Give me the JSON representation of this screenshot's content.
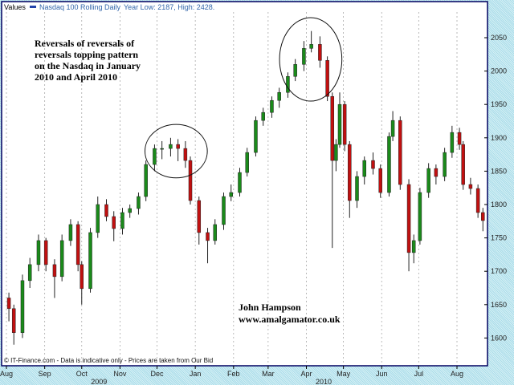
{
  "chart_data": {
    "type": "candlestick",
    "header": {
      "label": "Values",
      "series_name": "Nasdaq 100 Rolling Daily",
      "range_text": "Year Low: 2187, High: 2428."
    },
    "footer_note": "© IT-Finance.com - Data is indicative only - Prices are taken from Our Bid",
    "annotation_main": [
      "Reversals of reversals of",
      "reversals topping pattern",
      "on the Nasdaq in January",
      "2010 and April 2010"
    ],
    "annotation_author": [
      "John Hampson",
      "www.amalgamator.co.uk"
    ],
    "highlight_regions": [
      {
        "from": "2009-12-01",
        "to": "2010-01-01",
        "low": 1840,
        "high": 1920
      },
      {
        "from": "2010-03-20",
        "to": "2010-04-20",
        "low": 1955,
        "high": 2080
      }
    ],
    "x_ticks": [
      {
        "label": "Aug",
        "date": "2009-08-01"
      },
      {
        "label": "Sep",
        "date": "2009-09-01"
      },
      {
        "label": "Oct",
        "date": "2009-10-01"
      },
      {
        "label": "Nov",
        "date": "2009-11-01"
      },
      {
        "label": "Dec",
        "date": "2009-12-01"
      },
      {
        "label": "Jan",
        "date": "2010-01-01"
      },
      {
        "label": "Feb",
        "date": "2010-02-01"
      },
      {
        "label": "Mar",
        "date": "2010-03-01"
      },
      {
        "label": "Apr",
        "date": "2010-04-01"
      },
      {
        "label": "May",
        "date": "2010-05-01"
      },
      {
        "label": "Jun",
        "date": "2010-06-01"
      },
      {
        "label": "Jul",
        "date": "2010-07-01"
      },
      {
        "label": "Aug",
        "date": "2010-08-01"
      }
    ],
    "year_labels": [
      {
        "label": "2009",
        "date": "2009-10-15"
      },
      {
        "label": "2010",
        "date": "2010-04-15"
      }
    ],
    "y_ticks": [
      1600,
      1650,
      1700,
      1750,
      1800,
      1850,
      1900,
      1950,
      2000,
      2050
    ],
    "ylim": [
      1580,
      2095
    ],
    "xlim": [
      "2009-08-01",
      "2010-08-26"
    ],
    "grid": "vertical dashed at months",
    "colors": {
      "up": "#1a8a1a",
      "down": "#c01010",
      "background": "#ffffff",
      "header_text": "#3366aa"
    },
    "candles": [
      [
        "2009-08-03",
        1660,
        1668,
        1625,
        1644
      ],
      [
        "2009-08-07",
        1644,
        1650,
        1590,
        1608
      ],
      [
        "2009-08-14",
        1608,
        1695,
        1600,
        1686
      ],
      [
        "2009-08-20",
        1686,
        1720,
        1675,
        1710
      ],
      [
        "2009-08-27",
        1710,
        1755,
        1700,
        1746
      ],
      [
        "2009-09-02",
        1746,
        1750,
        1700,
        1710
      ],
      [
        "2009-09-09",
        1710,
        1718,
        1660,
        1692
      ],
      [
        "2009-09-15",
        1692,
        1755,
        1685,
        1746
      ],
      [
        "2009-09-22",
        1746,
        1778,
        1738,
        1770
      ],
      [
        "2009-09-28",
        1770,
        1775,
        1700,
        1710
      ],
      [
        "2009-10-01",
        1710,
        1715,
        1650,
        1674
      ],
      [
        "2009-10-08",
        1674,
        1765,
        1668,
        1758
      ],
      [
        "2009-10-14",
        1758,
        1812,
        1750,
        1800
      ],
      [
        "2009-10-21",
        1800,
        1808,
        1775,
        1782
      ],
      [
        "2009-10-27",
        1782,
        1790,
        1745,
        1764
      ],
      [
        "2009-11-03",
        1764,
        1795,
        1755,
        1788
      ],
      [
        "2009-11-09",
        1788,
        1800,
        1780,
        1794
      ],
      [
        "2009-11-16",
        1794,
        1818,
        1785,
        1812
      ],
      [
        "2009-11-22",
        1812,
        1866,
        1805,
        1860
      ],
      [
        "2009-11-29",
        1860,
        1890,
        1850,
        1884
      ],
      [
        "2009-12-05",
        1884,
        1895,
        1868,
        1884
      ],
      [
        "2009-12-12",
        1884,
        1900,
        1872,
        1890
      ],
      [
        "2009-12-18",
        1890,
        1898,
        1865,
        1884
      ],
      [
        "2009-12-24",
        1884,
        1895,
        1855,
        1866
      ],
      [
        "2009-12-28",
        1866,
        1872,
        1800,
        1806
      ],
      [
        "2010-01-04",
        1806,
        1812,
        1740,
        1758
      ],
      [
        "2010-01-11",
        1758,
        1765,
        1712,
        1746
      ],
      [
        "2010-01-17",
        1746,
        1778,
        1740,
        1770
      ],
      [
        "2010-01-24",
        1770,
        1818,
        1762,
        1812
      ],
      [
        "2010-01-30",
        1812,
        1830,
        1805,
        1818
      ],
      [
        "2010-02-06",
        1818,
        1855,
        1812,
        1848
      ],
      [
        "2010-02-12",
        1848,
        1885,
        1842,
        1878
      ],
      [
        "2010-02-19",
        1878,
        1932,
        1872,
        1926
      ],
      [
        "2010-02-25",
        1926,
        1945,
        1918,
        1938
      ],
      [
        "2010-03-04",
        1938,
        1962,
        1930,
        1956
      ],
      [
        "2010-03-10",
        1956,
        1975,
        1945,
        1968
      ],
      [
        "2010-03-17",
        1968,
        1998,
        1960,
        1992
      ],
      [
        "2010-03-23",
        1992,
        2018,
        1985,
        2010
      ],
      [
        "2010-03-30",
        2010,
        2045,
        2000,
        2034
      ],
      [
        "2010-04-05",
        2034,
        2060,
        2028,
        2040
      ],
      [
        "2010-04-12",
        2040,
        2052,
        2005,
        2016
      ],
      [
        "2010-04-18",
        2016,
        2022,
        1955,
        1962
      ],
      [
        "2010-04-22",
        1962,
        1968,
        1735,
        1866
      ],
      [
        "2010-04-25",
        1866,
        1898,
        1850,
        1890
      ],
      [
        "2010-04-28",
        1890,
        1968,
        1885,
        1950
      ],
      [
        "2010-05-02",
        1950,
        1955,
        1880,
        1890
      ],
      [
        "2010-05-06",
        1890,
        1895,
        1780,
        1806
      ],
      [
        "2010-05-12",
        1806,
        1850,
        1795,
        1842
      ],
      [
        "2010-05-18",
        1842,
        1872,
        1830,
        1866
      ],
      [
        "2010-05-25",
        1866,
        1878,
        1845,
        1854
      ],
      [
        "2010-05-31",
        1854,
        1860,
        1810,
        1818
      ],
      [
        "2010-06-07",
        1818,
        1908,
        1812,
        1902
      ],
      [
        "2010-06-10",
        1902,
        1940,
        1895,
        1926
      ],
      [
        "2010-06-16",
        1926,
        1932,
        1822,
        1830
      ],
      [
        "2010-06-23",
        1830,
        1838,
        1700,
        1728
      ],
      [
        "2010-06-27",
        1728,
        1755,
        1712,
        1746
      ],
      [
        "2010-07-02",
        1746,
        1825,
        1740,
        1818
      ],
      [
        "2010-07-09",
        1818,
        1862,
        1810,
        1854
      ],
      [
        "2010-07-15",
        1854,
        1860,
        1830,
        1842
      ],
      [
        "2010-07-22",
        1842,
        1885,
        1835,
        1878
      ],
      [
        "2010-07-28",
        1878,
        1918,
        1870,
        1908
      ],
      [
        "2010-08-03",
        1908,
        1915,
        1882,
        1890
      ],
      [
        "2010-08-06",
        1890,
        1895,
        1822,
        1830
      ],
      [
        "2010-08-12",
        1830,
        1840,
        1815,
        1824
      ],
      [
        "2010-08-18",
        1824,
        1830,
        1780,
        1788
      ],
      [
        "2010-08-22",
        1788,
        1795,
        1760,
        1776
      ]
    ]
  }
}
